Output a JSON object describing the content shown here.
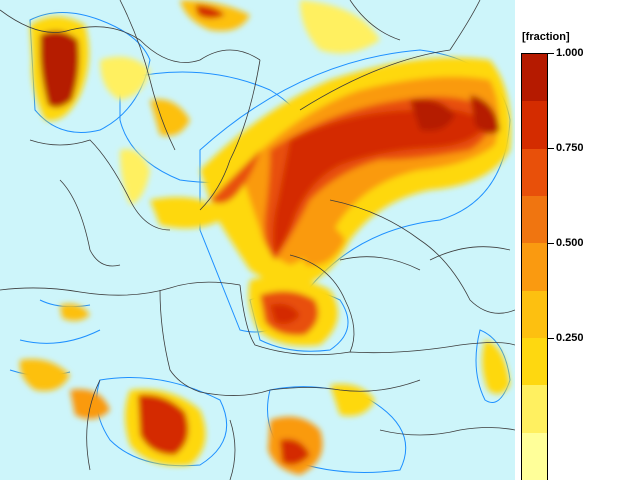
{
  "legend": {
    "unit": "[fraction]",
    "tick_labels": [
      "1.000",
      "0.750",
      "0.500",
      "0.250"
    ],
    "tick_values": [
      1.0,
      0.75,
      0.5,
      0.25
    ],
    "colors_top_to_bottom": [
      "#b51a00",
      "#d42c00",
      "#e8500a",
      "#f07510",
      "#fa9a10",
      "#fdc010",
      "#fed810",
      "#fff060",
      "#ffff99"
    ]
  },
  "map": {
    "background_color": "#cdf5fa",
    "border_color": "#3c3c3c",
    "low_contour_color": "#1e90ff"
  }
}
